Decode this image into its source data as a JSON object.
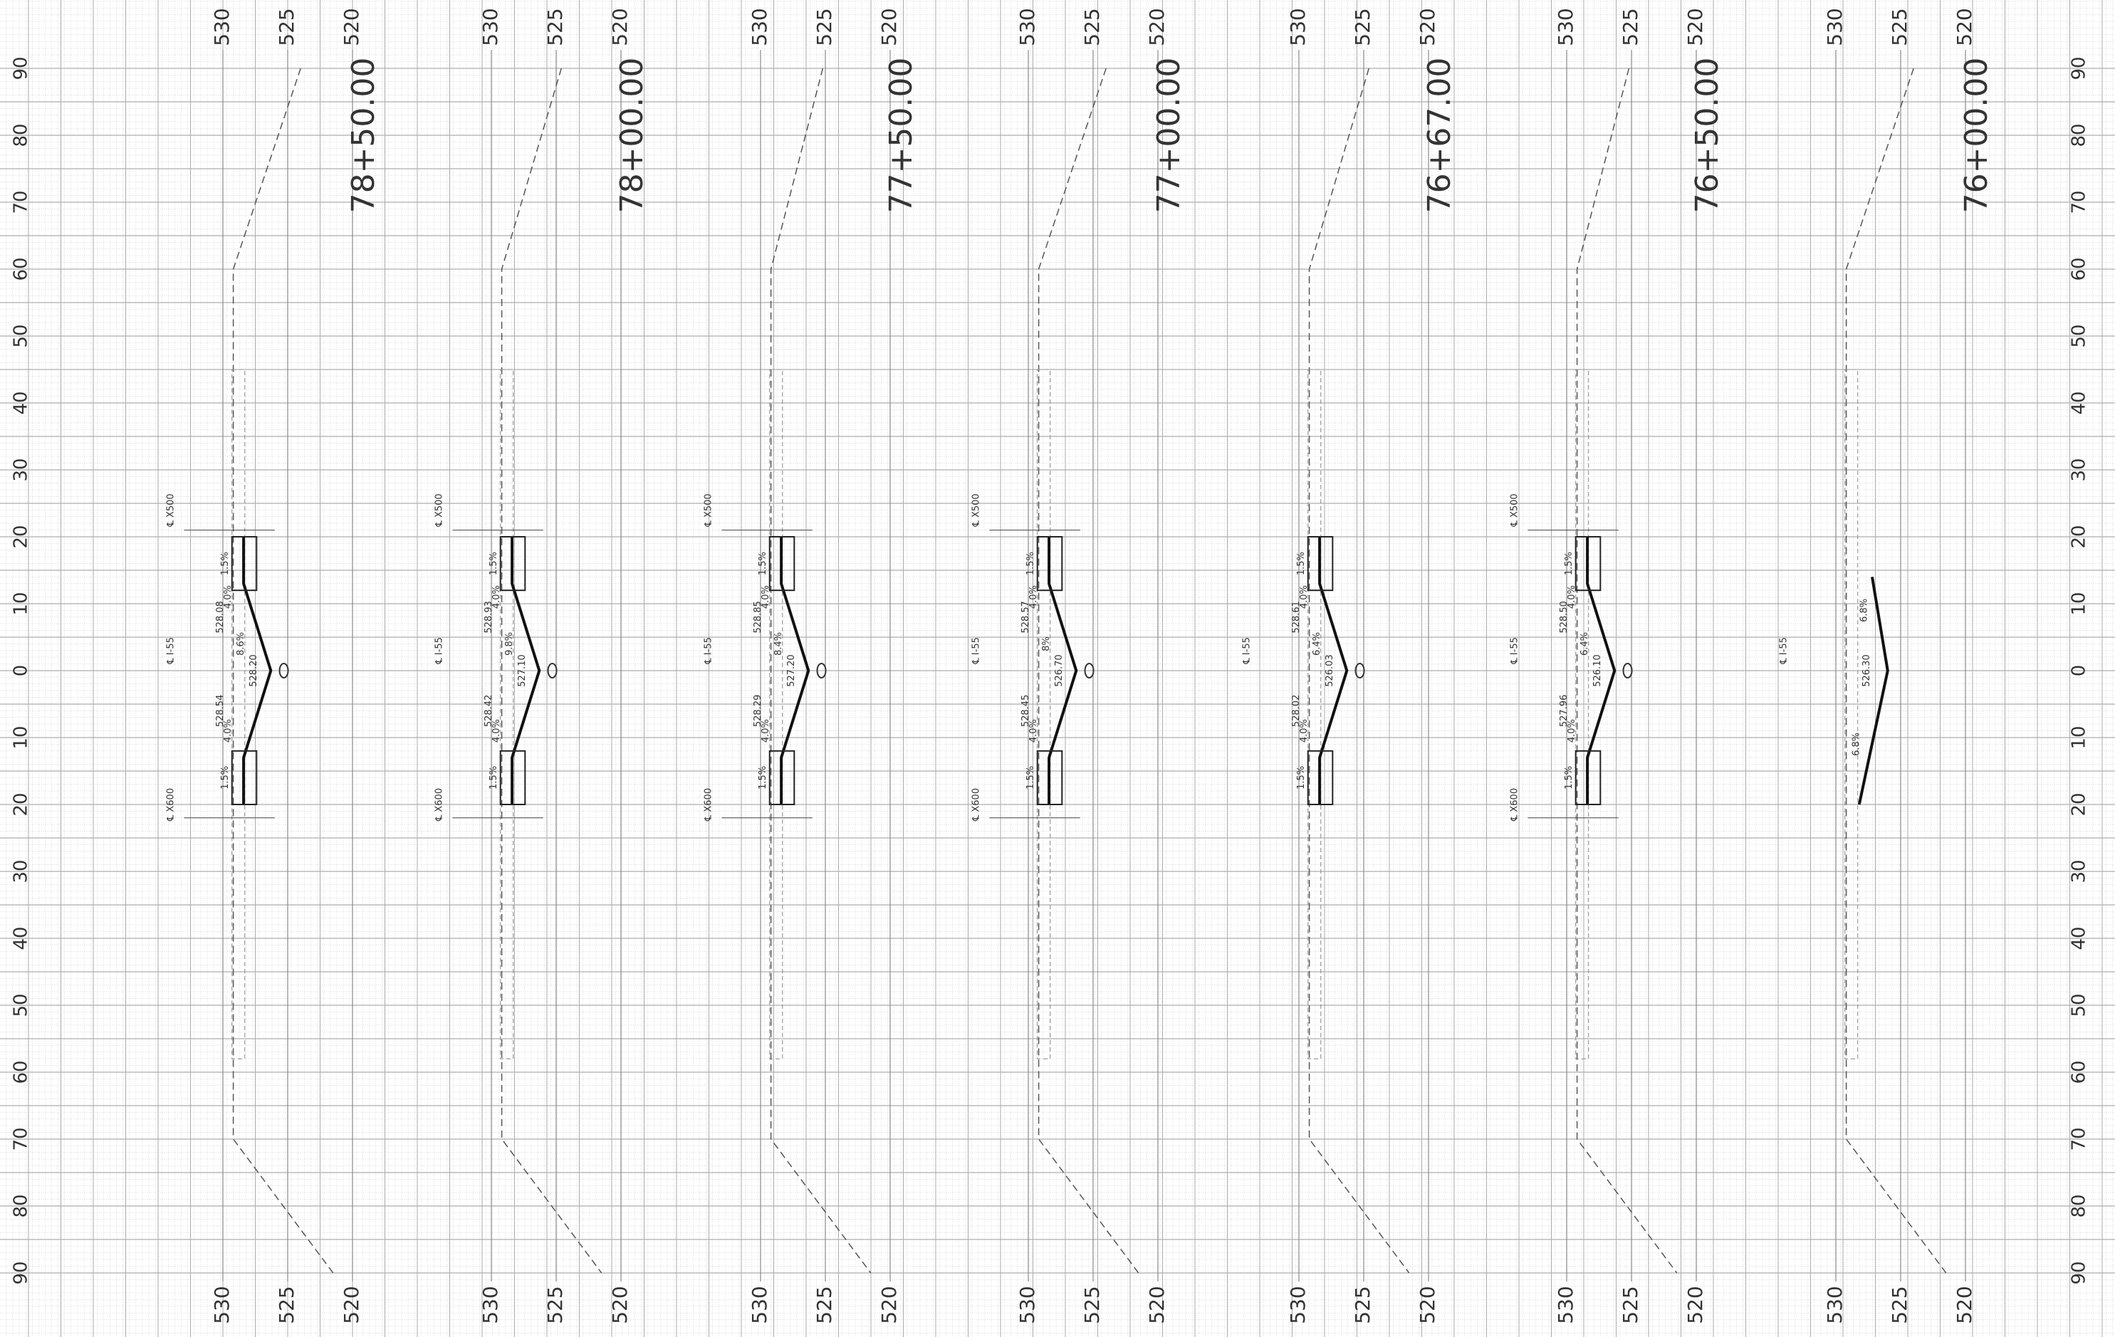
{
  "offset_labels": [
    "90",
    "80",
    "70",
    "60",
    "50",
    "40",
    "30",
    "20",
    "10",
    "0",
    "10",
    "20",
    "30",
    "40",
    "50",
    "60",
    "70",
    "80",
    "90"
  ],
  "panels": [
    {
      "station": "78+50.00",
      "elevations": [
        "530",
        "525",
        "520"
      ],
      "x500": "℄ X500",
      "i55": "℄ I-55",
      "x600": "℄ X600",
      "center_elev": "528.20",
      "notes": [
        "1.5%",
        "4.0%",
        "528.08",
        "8.6%",
        "528.54",
        "4.0%",
        "1.5%"
      ]
    },
    {
      "station": "78+00.00",
      "elevations": [
        "530",
        "525",
        "520"
      ],
      "x500": "℄ X500",
      "i55": "℄ I-55",
      "x600": "℄ X600",
      "center_elev": "527.10",
      "notes": [
        "1.5%",
        "4.0%",
        "528.93",
        "9.8%",
        "528.42",
        "4.0%",
        "1.5%"
      ]
    },
    {
      "station": "77+50.00",
      "elevations": [
        "530",
        "525",
        "520"
      ],
      "x500": "℄ X500",
      "i55": "℄ I-55",
      "x600": "℄ X600",
      "center_elev": "527.20",
      "notes": [
        "1.5%",
        "4.0%",
        "528.85",
        "8.4%",
        "528.29",
        "4.0%",
        "1.5%"
      ]
    },
    {
      "station": "77+00.00",
      "elevations": [
        "530",
        "525",
        "520"
      ],
      "x500": "℄ X500",
      "i55": "℄ I-55",
      "x600": "℄ X600",
      "center_elev": "526.70",
      "notes": [
        "1.5%",
        "4.0%",
        "528.57",
        "8%",
        "528.45",
        "4.0%",
        "1.5%"
      ]
    },
    {
      "station": "76+67.00",
      "elevations": [
        "530",
        "525",
        "520"
      ],
      "i55": "℄ I-55",
      "center_elev": "526.03",
      "notes": [
        "1.5%",
        "4.0%",
        "528.61",
        "6.4%",
        "528.02",
        "4.0%",
        "1.5%"
      ]
    },
    {
      "station": "76+50.00",
      "elevations": [
        "530",
        "525",
        "520"
      ],
      "x500": "℄ X500",
      "i55": "℄ I-55",
      "x600": "℄ X600",
      "center_elev": "526.10",
      "notes": [
        "1.5%",
        "4.0%",
        "528.50",
        "6.4%",
        "527.96",
        "4.0%",
        "1.5%"
      ]
    },
    {
      "station": "76+00.00",
      "elevations": [
        "530",
        "525",
        "520"
      ],
      "i55": "℄ I-55",
      "center_elev": "526.30",
      "notes": [
        "6.8%",
        "6.8%"
      ]
    }
  ]
}
